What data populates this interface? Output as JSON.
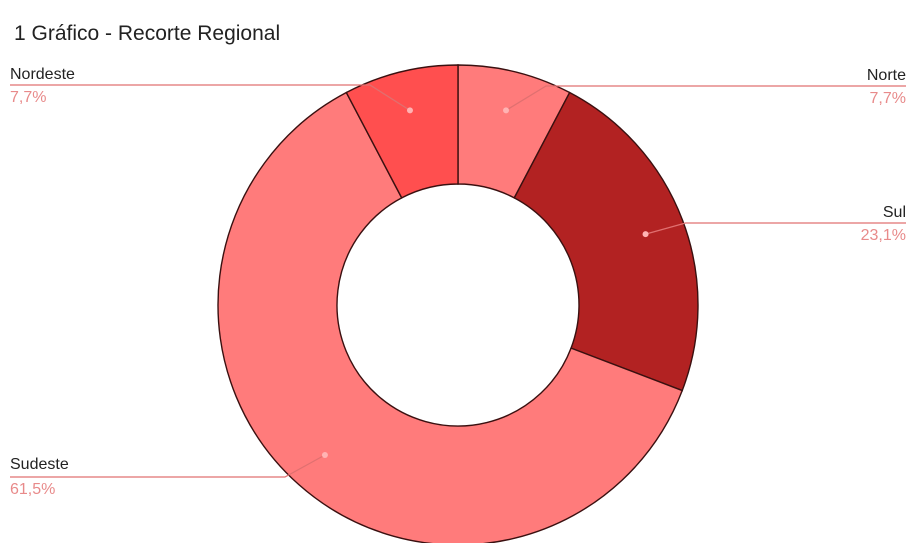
{
  "chart_data": {
    "type": "pie",
    "title": "1 Gráfico - Recorte Regional",
    "categories": [
      "Norte",
      "Sul",
      "Sudeste",
      "Nordeste"
    ],
    "values": [
      7.7,
      23.1,
      61.5,
      7.7
    ],
    "labels": [
      "7,7%",
      "23,1%",
      "61,5%",
      "7,7%"
    ],
    "colors": [
      "#ff7b7b",
      "#b22222",
      "#ff7b7b",
      "#ff4f4f"
    ],
    "line_color": "#e07070",
    "legend": "none"
  }
}
